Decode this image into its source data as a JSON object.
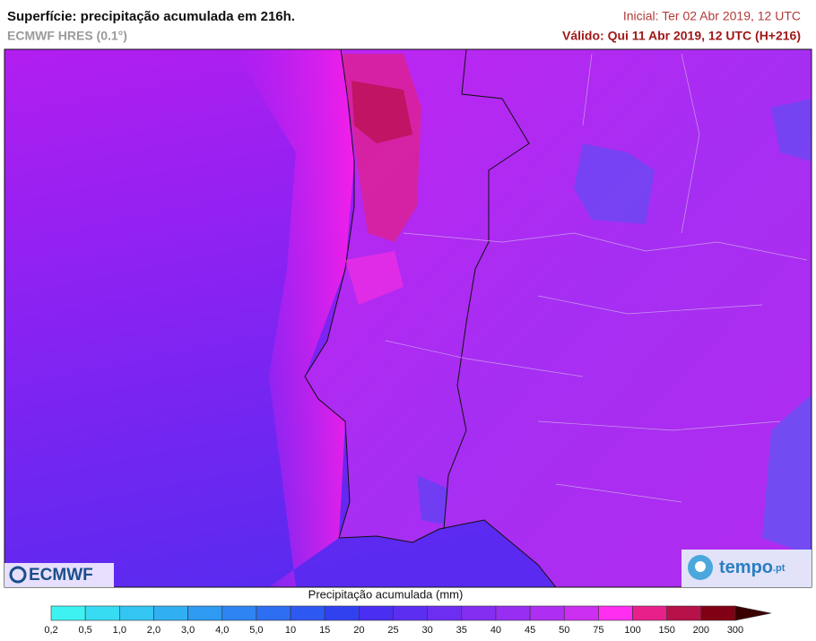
{
  "header": {
    "title": "Superfície: precipitação acumulada em 216h.",
    "subtitle": "ECMWF HRES (0.1°)",
    "initial": "Inicial: Ter 02 Abr 2019, 12 UTC",
    "valid": "Válido: Qui 11 Abr 2019, 12 UTC (H+216)"
  },
  "logos": {
    "left": "ECMWF",
    "right": "tempo",
    "right_suffix": ".pt"
  },
  "colorbar": {
    "label": "Precipitação acumulada (mm)",
    "ticks": [
      "0,2",
      "0,5",
      "1,0",
      "2,0",
      "3,0",
      "4,0",
      "5,0",
      "10",
      "15",
      "20",
      "25",
      "30",
      "35",
      "40",
      "45",
      "50",
      "75",
      "100",
      "150",
      "200",
      "300"
    ],
    "colors": [
      "#3ff2f2",
      "#38dcf2",
      "#33c6f2",
      "#30b0f2",
      "#2e9af2",
      "#2e84f2",
      "#2e6ef2",
      "#2e58f2",
      "#3042f0",
      "#4a2ef2",
      "#5c2ef2",
      "#6e2ef2",
      "#842ef2",
      "#982ef2",
      "#ae2ef2",
      "#cc2ef2",
      "#ff2ef0",
      "#e8208a",
      "#b81048",
      "#820014"
    ],
    "over_color": "#3a0000"
  }
}
